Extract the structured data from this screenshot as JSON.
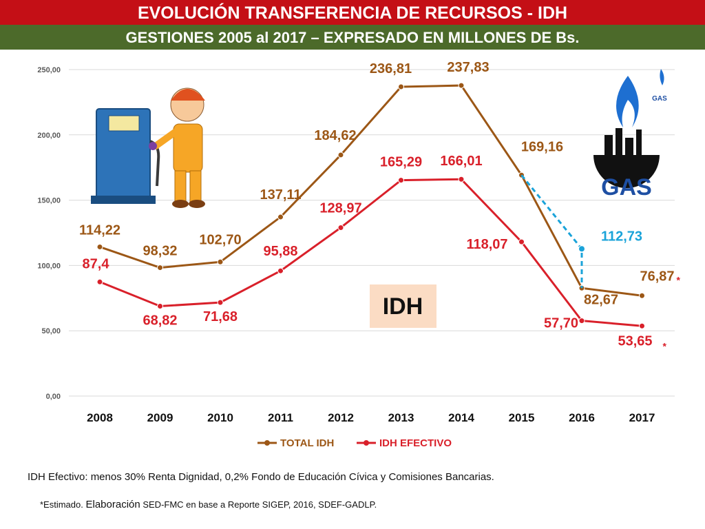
{
  "header": {
    "title": "EVOLUCIÓN TRANSFERENCIA DE RECURSOS - IDH",
    "subtitle": "GESTIONES 2005 al 2017 – EXPRESADO EN  MILLONES DE Bs."
  },
  "chart_data": {
    "type": "line",
    "title": "",
    "xlabel": "",
    "ylabel": "",
    "ylim": [
      0,
      250
    ],
    "yticks": [
      "0,00",
      "50,00",
      "100,00",
      "150,00",
      "200,00",
      "250,00"
    ],
    "categories": [
      "2008",
      "2009",
      "2010",
      "2011",
      "2012",
      "2013",
      "2014",
      "2015",
      "2016",
      "2017"
    ],
    "grid": true,
    "legend_position": "bottom",
    "series": [
      {
        "name": "TOTAL IDH",
        "color": "#9c5716",
        "values": [
          114.22,
          98.32,
          102.7,
          137.11,
          184.62,
          236.81,
          237.83,
          169.16,
          82.67,
          76.87
        ],
        "labels": [
          "114,22",
          "98,32",
          "102,70",
          "137,11",
          "184,62",
          "236,81",
          "237,83",
          "169,16",
          "82,67",
          "76,87"
        ]
      },
      {
        "name": "IDH EFECTIVO",
        "color": "#d9202a",
        "values": [
          87.4,
          68.82,
          71.68,
          95.88,
          128.97,
          165.29,
          166.01,
          118.07,
          57.7,
          53.65
        ],
        "labels": [
          "87,4",
          "68,82",
          "71,68",
          "95,88",
          "128,97",
          "165,29",
          "166,01",
          "118,07",
          "57,70",
          "53,65"
        ]
      }
    ],
    "annotations": {
      "alt_2016_value": 112.73,
      "alt_2016_label": "112,73",
      "alt_color": "#1aa3d9",
      "estimate_mark": "*",
      "box_label": "IDH",
      "gas_logo_text": "GAS"
    }
  },
  "footer": {
    "note1": "IDH Efectivo: menos 30% Renta Dignidad, 0,2% Fondo de Educación Cívica y Comisiones Bancarias.",
    "note2_prefix": "*Estimado.",
    "note2_elab": "Elaboración",
    "note2_rest": "SED-FMC en base a Reporte  SIGEP, 2016, SDEF-GADLP."
  }
}
